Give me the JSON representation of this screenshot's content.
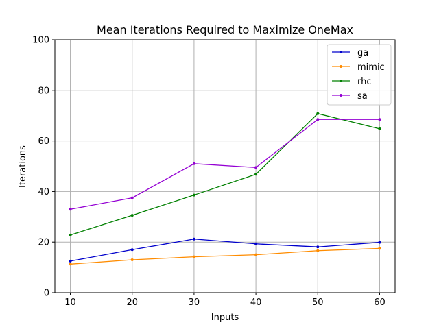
{
  "chart_data": {
    "type": "line",
    "title": "Mean Iterations Required to Maximize OneMax",
    "xlabel": "Inputs",
    "ylabel": "Iterations",
    "x": [
      10,
      20,
      30,
      40,
      50,
      60
    ],
    "xticks": [
      "10",
      "20",
      "30",
      "40",
      "50",
      "60"
    ],
    "yticks": [
      "0",
      "20",
      "40",
      "60",
      "80",
      "100"
    ],
    "xlim": [
      7.5,
      62.5
    ],
    "ylim": [
      0,
      100
    ],
    "grid": true,
    "legend_position": "top-right",
    "series": [
      {
        "name": "ga",
        "color": "#0000cc",
        "values": [
          12.5,
          17.0,
          21.2,
          19.3,
          18.1,
          19.9
        ]
      },
      {
        "name": "mimic",
        "color": "#ff8c00",
        "values": [
          11.3,
          13.0,
          14.2,
          15.0,
          16.6,
          17.5
        ]
      },
      {
        "name": "rhc",
        "color": "#008000",
        "values": [
          22.8,
          30.6,
          38.6,
          46.8,
          70.8,
          64.8
        ]
      },
      {
        "name": "sa",
        "color": "#9400d3",
        "values": [
          33.0,
          37.5,
          51.0,
          49.5,
          68.5,
          68.5
        ]
      }
    ]
  }
}
